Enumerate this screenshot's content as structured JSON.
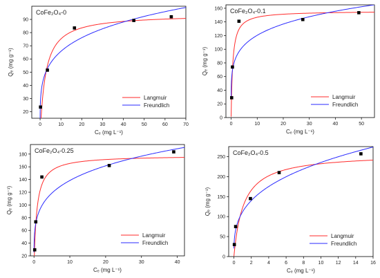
{
  "figure": {
    "xlabel": "Cₑ (mg L⁻¹)",
    "ylabel": "Qₑ (mg g⁻¹)"
  },
  "chart_data": [
    {
      "type": "scatter",
      "title": "CoFe₂O₄-0",
      "xlabel": "Cₑ (mg L⁻¹)",
      "ylabel": "Qₑ (mg g⁻¹)",
      "xlim": [
        -4,
        70
      ],
      "ylim": [
        15,
        100
      ],
      "xticks": [
        0,
        10,
        20,
        30,
        40,
        50,
        60,
        70
      ],
      "yticks": [
        20,
        30,
        40,
        50,
        60,
        70,
        80,
        90
      ],
      "legend_position": "bottom-right",
      "points": {
        "x": [
          0.2,
          3.5,
          16.5,
          45,
          63
        ],
        "y": [
          23.5,
          51.5,
          83.5,
          89.2,
          92
        ]
      },
      "series": [
        {
          "name": "Langmuir",
          "model": "langmuir",
          "params": {
            "qm": 94,
            "kl": 0.4
          },
          "color": "#ff2a2a"
        },
        {
          "name": "Freundlich",
          "model": "freundlich",
          "params": {
            "kf": 40.5,
            "n": 4.75
          },
          "color": "#2a2aff"
        }
      ]
    },
    {
      "type": "scatter",
      "title": "CoFe₂O₄-0.1",
      "xlabel": "Cₑ (mg L⁻¹)",
      "ylabel": "Qₑ (mg g⁻¹)",
      "xlim": [
        -2,
        55
      ],
      "ylim": [
        0,
        165
      ],
      "xticks": [
        0,
        10,
        20,
        30,
        40,
        50
      ],
      "yticks": [
        0,
        20,
        40,
        60,
        80,
        100,
        120,
        140,
        160
      ],
      "legend_position": "bottom-right",
      "points": {
        "x": [
          0.2,
          0.5,
          3.0,
          27.5,
          49
        ],
        "y": [
          29,
          74,
          141,
          143.5,
          153.5
        ]
      },
      "series": [
        {
          "name": "Langmuir",
          "model": "langmuir",
          "params": {
            "qm": 156,
            "kl": 1.6
          },
          "color": "#ff2a2a"
        },
        {
          "name": "Freundlich",
          "model": "freundlich",
          "params": {
            "kf": 78.6,
            "n": 5.4
          },
          "color": "#2a2aff"
        }
      ]
    },
    {
      "type": "scatter",
      "title": "CoFe₂O₄-0.25",
      "xlabel": "Cₑ (mg L⁻¹)",
      "ylabel": "Qₑ (mg g⁻¹)",
      "xlim": [
        -1,
        42
      ],
      "ylim": [
        20,
        195
      ],
      "xticks": [
        0,
        10,
        20,
        30,
        40
      ],
      "yticks": [
        20,
        40,
        60,
        80,
        100,
        120,
        140,
        160,
        180
      ],
      "legend_position": "bottom-right",
      "points": {
        "x": [
          0.2,
          0.5,
          2.2,
          21,
          39
        ],
        "y": [
          29.5,
          73.5,
          144,
          162,
          183.5
        ]
      },
      "series": [
        {
          "name": "Langmuir",
          "model": "langmuir",
          "params": {
            "qm": 178,
            "kl": 1.3
          },
          "color": "#ff2a2a"
        },
        {
          "name": "Freundlich",
          "model": "freundlich",
          "params": {
            "kf": 83,
            "n": 4.5
          },
          "color": "#2a2aff"
        }
      ]
    },
    {
      "type": "scatter",
      "title": "CoFe₂O₄-0.5",
      "xlabel": "Cₑ (mg L⁻¹)",
      "ylabel": "Qₑ (mg g⁻¹)",
      "xlim": [
        -0.6,
        16
      ],
      "ylim": [
        0,
        275
      ],
      "xticks": [
        0,
        2,
        4,
        6,
        8,
        10,
        12,
        14,
        16
      ],
      "yticks": [
        0,
        50,
        100,
        150,
        200,
        250
      ],
      "legend_position": "bottom-right",
      "points": {
        "x": [
          0.05,
          0.2,
          1.9,
          5.2,
          14.6
        ],
        "y": [
          30,
          75,
          145,
          210,
          257
        ]
      },
      "series": [
        {
          "name": "Langmuir",
          "model": "langmuir",
          "params": {
            "qm": 258,
            "kl": 0.9
          },
          "color": "#ff2a2a"
        },
        {
          "name": "Freundlich",
          "model": "freundlich",
          "params": {
            "kf": 112,
            "n": 3.1
          },
          "color": "#2a2aff"
        }
      ]
    }
  ]
}
